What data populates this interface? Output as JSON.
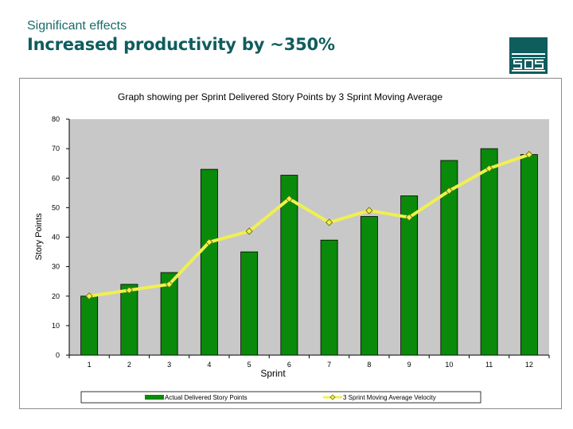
{
  "slide": {
    "subtitle": "Significant effects",
    "headline": "Increased productivity by ~350%",
    "logo_text": "SQS"
  },
  "colors": {
    "heading": "#0f5d5d",
    "bar_fill": "#0a8a0a",
    "line": "#f0f050",
    "plot_bg": "#c8c8c8"
  },
  "chart_data": {
    "type": "bar",
    "title": "Graph showing per Sprint Delivered Story Points by 3 Sprint Moving Average",
    "xlabel": "Sprint",
    "ylabel": "Story Points",
    "ylim": [
      0,
      80
    ],
    "yticks": [
      0,
      10,
      20,
      30,
      40,
      50,
      60,
      70,
      80
    ],
    "categories": [
      "1",
      "2",
      "3",
      "4",
      "5",
      "6",
      "7",
      "8",
      "9",
      "10",
      "11",
      "12"
    ],
    "series": [
      {
        "name": "Actual Delivered Story Points",
        "kind": "bar",
        "values": [
          20,
          24,
          28,
          63,
          35,
          61,
          39,
          47,
          54,
          66,
          70,
          68
        ]
      },
      {
        "name": "3 Sprint Moving Average Velocity",
        "kind": "line",
        "values": [
          20,
          22,
          24,
          38.3,
          42,
          53,
          45,
          49,
          46.7,
          55.7,
          63.3,
          68
        ]
      }
    ],
    "grid": false,
    "legend": "bottom"
  }
}
